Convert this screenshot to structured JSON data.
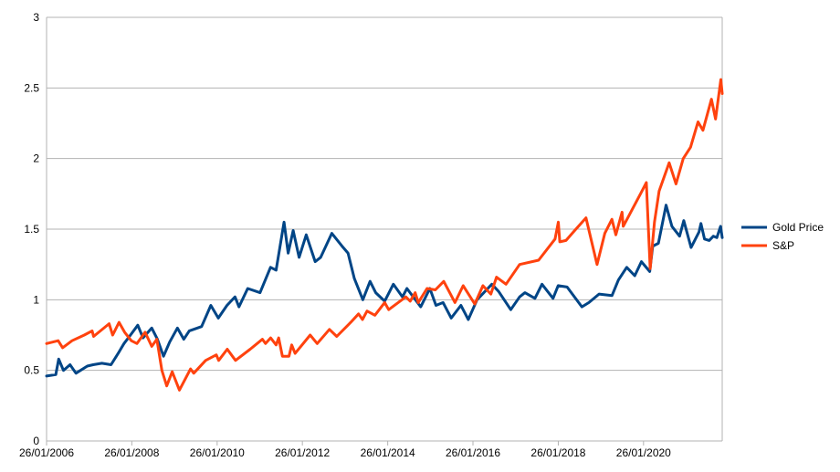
{
  "chart_data": {
    "type": "line",
    "title": "",
    "xlabel": "",
    "ylabel": "",
    "ylim": [
      0,
      3
    ],
    "yticks": [
      "0",
      "0.5",
      "1",
      "1.5",
      "2",
      "2.5",
      "3"
    ],
    "xticks": [
      "26/01/2006",
      "26/01/2008",
      "26/01/2010",
      "26/01/2012",
      "26/01/2014",
      "26/01/2016",
      "26/01/2018",
      "26/01/2020"
    ],
    "x_range": [
      "2006-01-26",
      "2021-11-30"
    ],
    "grid": true,
    "legend_position": "right",
    "series": [
      {
        "name": "Gold Price",
        "color": "#004586",
        "points": [
          [
            "2006-01-26",
            0.46
          ],
          [
            "2006-04-15",
            0.47
          ],
          [
            "2006-05-10",
            0.58
          ],
          [
            "2006-06-20",
            0.5
          ],
          [
            "2006-08-15",
            0.54
          ],
          [
            "2006-10-05",
            0.48
          ],
          [
            "2007-01-10",
            0.53
          ],
          [
            "2007-03-01",
            0.54
          ],
          [
            "2007-05-15",
            0.55
          ],
          [
            "2007-08-01",
            0.54
          ],
          [
            "2007-10-01",
            0.62
          ],
          [
            "2007-11-20",
            0.69
          ],
          [
            "2008-01-15",
            0.75
          ],
          [
            "2008-03-17",
            0.82
          ],
          [
            "2008-05-01",
            0.73
          ],
          [
            "2008-07-15",
            0.8
          ],
          [
            "2008-09-01",
            0.72
          ],
          [
            "2008-10-24",
            0.6
          ],
          [
            "2008-12-15",
            0.7
          ],
          [
            "2009-02-20",
            0.8
          ],
          [
            "2009-04-15",
            0.72
          ],
          [
            "2009-06-01",
            0.78
          ],
          [
            "2009-09-15",
            0.81
          ],
          [
            "2009-12-03",
            0.96
          ],
          [
            "2010-02-05",
            0.87
          ],
          [
            "2010-04-20",
            0.96
          ],
          [
            "2010-06-28",
            1.02
          ],
          [
            "2010-08-01",
            0.95
          ],
          [
            "2010-10-15",
            1.08
          ],
          [
            "2011-01-28",
            1.05
          ],
          [
            "2011-04-28",
            1.23
          ],
          [
            "2011-06-15",
            1.21
          ],
          [
            "2011-08-22",
            1.55
          ],
          [
            "2011-09-26",
            1.33
          ],
          [
            "2011-11-08",
            1.49
          ],
          [
            "2011-12-29",
            1.3
          ],
          [
            "2012-02-28",
            1.46
          ],
          [
            "2012-05-15",
            1.27
          ],
          [
            "2012-07-01",
            1.3
          ],
          [
            "2012-10-04",
            1.47
          ],
          [
            "2012-12-31",
            1.38
          ],
          [
            "2013-02-20",
            1.33
          ],
          [
            "2013-04-15",
            1.15
          ],
          [
            "2013-06-27",
            1.0
          ],
          [
            "2013-08-28",
            1.13
          ],
          [
            "2013-10-15",
            1.05
          ],
          [
            "2013-12-31",
            0.99
          ],
          [
            "2014-03-15",
            1.11
          ],
          [
            "2014-06-01",
            1.02
          ],
          [
            "2014-07-10",
            1.08
          ],
          [
            "2014-11-05",
            0.95
          ],
          [
            "2015-01-22",
            1.08
          ],
          [
            "2015-03-15",
            0.96
          ],
          [
            "2015-05-15",
            0.98
          ],
          [
            "2015-07-24",
            0.87
          ],
          [
            "2015-10-15",
            0.96
          ],
          [
            "2015-12-17",
            0.86
          ],
          [
            "2016-03-01",
            1.0
          ],
          [
            "2016-07-06",
            1.11
          ],
          [
            "2016-09-01",
            1.06
          ],
          [
            "2016-12-15",
            0.93
          ],
          [
            "2017-03-01",
            1.02
          ],
          [
            "2017-04-15",
            1.05
          ],
          [
            "2017-07-10",
            1.01
          ],
          [
            "2017-09-08",
            1.11
          ],
          [
            "2017-12-12",
            1.01
          ],
          [
            "2018-01-25",
            1.1
          ],
          [
            "2018-04-11",
            1.09
          ],
          [
            "2018-08-16",
            0.95
          ],
          [
            "2018-10-15",
            0.98
          ],
          [
            "2019-01-10",
            1.04
          ],
          [
            "2019-05-01",
            1.03
          ],
          [
            "2019-06-25",
            1.14
          ],
          [
            "2019-09-04",
            1.23
          ],
          [
            "2019-11-12",
            1.17
          ],
          [
            "2020-01-08",
            1.27
          ],
          [
            "2020-03-19",
            1.2
          ],
          [
            "2020-04-14",
            1.38
          ],
          [
            "2020-06-01",
            1.4
          ],
          [
            "2020-08-06",
            1.67
          ],
          [
            "2020-09-25",
            1.52
          ],
          [
            "2020-11-30",
            1.45
          ],
          [
            "2021-01-05",
            1.56
          ],
          [
            "2021-03-08",
            1.37
          ],
          [
            "2021-05-15",
            1.48
          ],
          [
            "2021-06-01",
            1.54
          ],
          [
            "2021-07-01",
            1.43
          ],
          [
            "2021-08-10",
            1.42
          ],
          [
            "2021-09-15",
            1.45
          ],
          [
            "2021-10-15",
            1.44
          ],
          [
            "2021-11-16",
            1.52
          ],
          [
            "2021-11-30",
            1.44
          ]
        ]
      },
      {
        "name": "S&P",
        "color": "#ff420e",
        "points": [
          [
            "2006-01-26",
            0.69
          ],
          [
            "2006-05-05",
            0.71
          ],
          [
            "2006-06-13",
            0.66
          ],
          [
            "2006-09-01",
            0.71
          ],
          [
            "2006-12-15",
            0.75
          ],
          [
            "2007-02-20",
            0.78
          ],
          [
            "2007-03-05",
            0.74
          ],
          [
            "2007-07-16",
            0.83
          ],
          [
            "2007-08-15",
            0.75
          ],
          [
            "2007-10-09",
            0.84
          ],
          [
            "2007-11-26",
            0.77
          ],
          [
            "2008-01-22",
            0.71
          ],
          [
            "2008-03-10",
            0.69
          ],
          [
            "2008-05-19",
            0.77
          ],
          [
            "2008-07-15",
            0.67
          ],
          [
            "2008-08-28",
            0.72
          ],
          [
            "2008-10-10",
            0.5
          ],
          [
            "2008-11-20",
            0.39
          ],
          [
            "2009-01-06",
            0.49
          ],
          [
            "2009-03-09",
            0.36
          ],
          [
            "2009-06-12",
            0.51
          ],
          [
            "2009-07-10",
            0.48
          ],
          [
            "2009-10-19",
            0.57
          ],
          [
            "2010-01-19",
            0.61
          ],
          [
            "2010-02-08",
            0.57
          ],
          [
            "2010-04-23",
            0.65
          ],
          [
            "2010-07-02",
            0.57
          ],
          [
            "2010-11-05",
            0.65
          ],
          [
            "2011-02-18",
            0.72
          ],
          [
            "2011-03-16",
            0.69
          ],
          [
            "2011-04-29",
            0.73
          ],
          [
            "2011-06-15",
            0.68
          ],
          [
            "2011-07-07",
            0.73
          ],
          [
            "2011-08-08",
            0.6
          ],
          [
            "2011-10-03",
            0.6
          ],
          [
            "2011-10-27",
            0.68
          ],
          [
            "2011-11-25",
            0.62
          ],
          [
            "2012-04-02",
            0.75
          ],
          [
            "2012-06-01",
            0.69
          ],
          [
            "2012-09-14",
            0.79
          ],
          [
            "2012-11-15",
            0.74
          ],
          [
            "2013-03-15",
            0.84
          ],
          [
            "2013-05-21",
            0.9
          ],
          [
            "2013-06-24",
            0.86
          ],
          [
            "2013-08-02",
            0.92
          ],
          [
            "2013-10-08",
            0.89
          ],
          [
            "2013-12-31",
            0.98
          ],
          [
            "2014-02-03",
            0.93
          ],
          [
            "2014-06-30",
            1.02
          ],
          [
            "2014-08-07",
            0.99
          ],
          [
            "2014-09-18",
            1.05
          ],
          [
            "2014-10-15",
            0.98
          ],
          [
            "2014-12-29",
            1.08
          ],
          [
            "2015-03-10",
            1.07
          ],
          [
            "2015-05-21",
            1.13
          ],
          [
            "2015-08-25",
            0.98
          ],
          [
            "2015-11-03",
            1.1
          ],
          [
            "2016-02-11",
            0.97
          ],
          [
            "2016-04-20",
            1.1
          ],
          [
            "2016-06-27",
            1.04
          ],
          [
            "2016-08-15",
            1.16
          ],
          [
            "2016-11-04",
            1.11
          ],
          [
            "2017-03-01",
            1.25
          ],
          [
            "2017-08-10",
            1.28
          ],
          [
            "2017-12-29",
            1.43
          ],
          [
            "2018-01-26",
            1.55
          ],
          [
            "2018-02-08",
            1.41
          ],
          [
            "2018-04-02",
            1.42
          ],
          [
            "2018-06-15",
            1.49
          ],
          [
            "2018-09-20",
            1.58
          ],
          [
            "2018-12-24",
            1.25
          ],
          [
            "2019-02-28",
            1.47
          ],
          [
            "2019-04-30",
            1.57
          ],
          [
            "2019-06-03",
            1.46
          ],
          [
            "2019-07-26",
            1.62
          ],
          [
            "2019-08-05",
            1.52
          ],
          [
            "2019-12-31",
            1.75
          ],
          [
            "2020-02-19",
            1.83
          ],
          [
            "2020-03-23",
            1.22
          ],
          [
            "2020-04-29",
            1.55
          ],
          [
            "2020-06-08",
            1.77
          ],
          [
            "2020-09-02",
            1.97
          ],
          [
            "2020-10-30",
            1.82
          ],
          [
            "2020-12-31",
            2.0
          ],
          [
            "2021-03-04",
            2.08
          ],
          [
            "2021-05-07",
            2.26
          ],
          [
            "2021-06-18",
            2.2
          ],
          [
            "2021-08-30",
            2.42
          ],
          [
            "2021-10-04",
            2.28
          ],
          [
            "2021-11-18",
            2.56
          ],
          [
            "2021-11-30",
            2.46
          ]
        ]
      }
    ]
  }
}
